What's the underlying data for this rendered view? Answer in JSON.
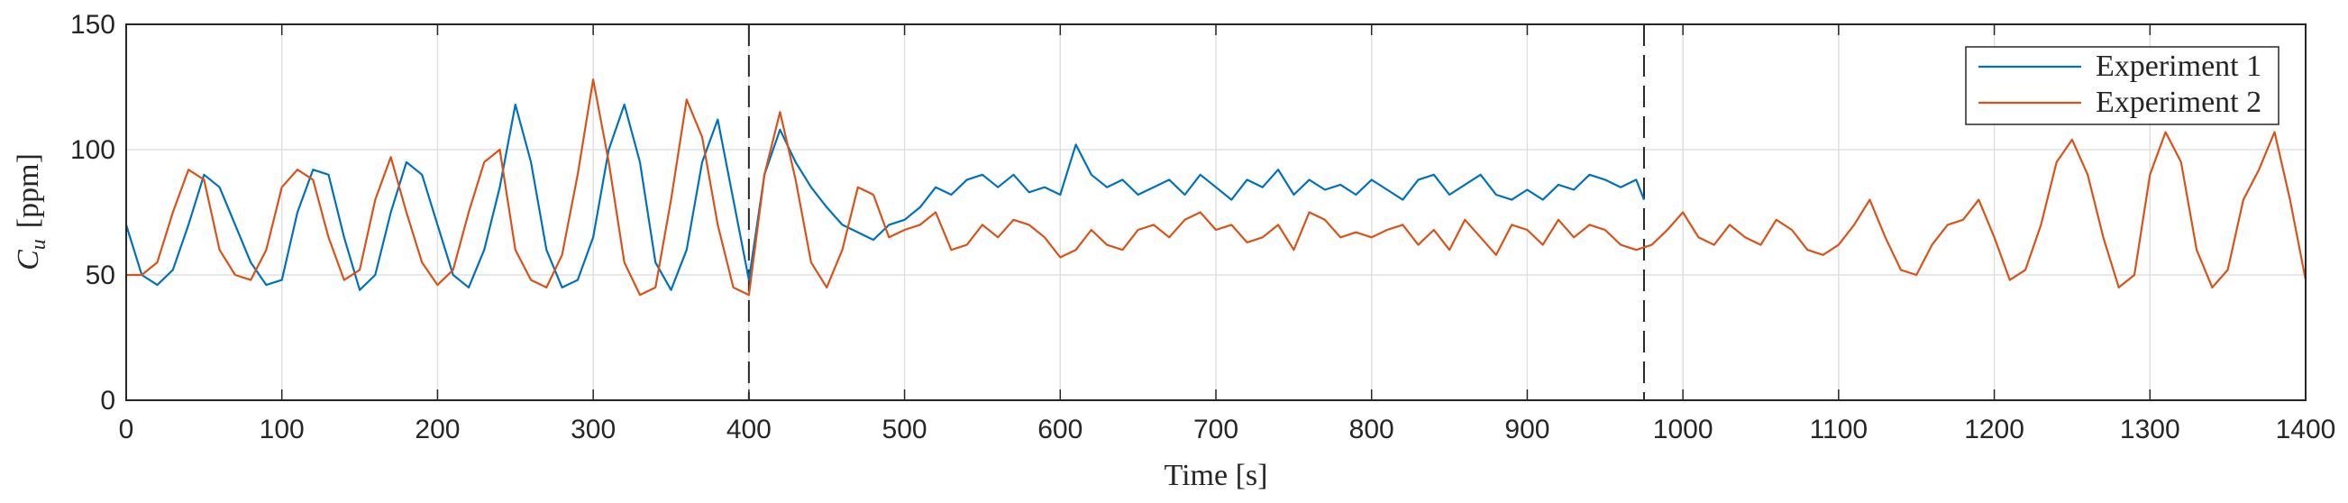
{
  "chart_data": {
    "type": "line",
    "x_label": "Time [s]",
    "y_label": {
      "symbol": "C",
      "subscript": "u",
      "unit": "[ppm]"
    },
    "xlim": [
      0,
      1400
    ],
    "xticks": [
      0,
      100,
      200,
      300,
      400,
      500,
      600,
      700,
      800,
      900,
      1000,
      1100,
      1200,
      1300,
      1400
    ],
    "ylim": [
      0,
      150
    ],
    "yticks": [
      0,
      50,
      100,
      150
    ],
    "grid": true,
    "legend": "upper right",
    "vlines": [
      400,
      975
    ],
    "series": [
      {
        "name": "Experiment 1",
        "color": "#0072bd",
        "x": [
          0,
          10,
          20,
          30,
          40,
          50,
          60,
          70,
          80,
          90,
          100,
          110,
          120,
          130,
          140,
          150,
          160,
          170,
          180,
          190,
          200,
          210,
          220,
          230,
          240,
          250,
          260,
          270,
          280,
          290,
          300,
          310,
          320,
          330,
          340,
          350,
          360,
          370,
          380,
          390,
          400,
          410,
          420,
          430,
          440,
          450,
          460,
          470,
          480,
          490,
          500,
          510,
          520,
          530,
          540,
          550,
          560,
          570,
          580,
          590,
          600,
          610,
          620,
          630,
          640,
          650,
          660,
          670,
          680,
          690,
          700,
          710,
          720,
          730,
          740,
          750,
          760,
          770,
          780,
          790,
          800,
          810,
          820,
          830,
          840,
          850,
          860,
          870,
          880,
          890,
          900,
          910,
          920,
          930,
          940,
          950,
          960,
          970,
          975
        ],
        "values": [
          70,
          50,
          46,
          52,
          70,
          90,
          85,
          70,
          55,
          46,
          48,
          75,
          92,
          90,
          65,
          44,
          50,
          75,
          95,
          90,
          70,
          50,
          45,
          60,
          85,
          118,
          95,
          60,
          45,
          48,
          65,
          100,
          118,
          95,
          55,
          44,
          60,
          95,
          112,
          80,
          48,
          90,
          108,
          95,
          85,
          77,
          70,
          67,
          64,
          70,
          72,
          77,
          85,
          82,
          88,
          90,
          85,
          90,
          83,
          85,
          82,
          102,
          90,
          85,
          88,
          82,
          85,
          88,
          82,
          90,
          85,
          80,
          88,
          85,
          92,
          82,
          88,
          84,
          86,
          82,
          88,
          84,
          80,
          88,
          90,
          82,
          86,
          90,
          82,
          80,
          84,
          80,
          86,
          84,
          90,
          88,
          85,
          88,
          80
        ]
      },
      {
        "name": "Experiment 2",
        "color": "#d95319",
        "x": [
          0,
          10,
          20,
          30,
          40,
          50,
          60,
          70,
          80,
          90,
          100,
          110,
          120,
          130,
          140,
          150,
          160,
          170,
          180,
          190,
          200,
          210,
          220,
          230,
          240,
          250,
          260,
          270,
          280,
          290,
          300,
          310,
          320,
          330,
          340,
          350,
          360,
          370,
          380,
          390,
          400,
          410,
          420,
          430,
          440,
          450,
          460,
          470,
          480,
          490,
          500,
          510,
          520,
          530,
          540,
          550,
          560,
          570,
          580,
          590,
          600,
          610,
          620,
          630,
          640,
          650,
          660,
          670,
          680,
          690,
          700,
          710,
          720,
          730,
          740,
          750,
          760,
          770,
          780,
          790,
          800,
          810,
          820,
          830,
          840,
          850,
          860,
          870,
          880,
          890,
          900,
          910,
          920,
          930,
          940,
          950,
          960,
          970,
          980,
          990,
          1000,
          1010,
          1020,
          1030,
          1040,
          1050,
          1060,
          1070,
          1080,
          1090,
          1100,
          1110,
          1120,
          1130,
          1140,
          1150,
          1160,
          1170,
          1180,
          1190,
          1200,
          1210,
          1220,
          1230,
          1240,
          1250,
          1260,
          1270,
          1280,
          1290,
          1300,
          1310,
          1320,
          1330,
          1340,
          1350,
          1360,
          1370,
          1380,
          1390,
          1400
        ],
        "values": [
          50,
          50,
          55,
          75,
          92,
          88,
          60,
          50,
          48,
          60,
          85,
          92,
          88,
          65,
          48,
          52,
          80,
          97,
          75,
          55,
          46,
          52,
          75,
          95,
          100,
          60,
          48,
          45,
          58,
          90,
          128,
          95,
          55,
          42,
          45,
          80,
          120,
          105,
          70,
          45,
          42,
          90,
          115,
          88,
          55,
          45,
          60,
          85,
          82,
          65,
          68,
          70,
          75,
          60,
          62,
          70,
          65,
          72,
          70,
          65,
          57,
          60,
          68,
          62,
          60,
          68,
          70,
          65,
          72,
          75,
          68,
          70,
          63,
          65,
          70,
          60,
          75,
          72,
          65,
          67,
          65,
          68,
          70,
          62,
          68,
          60,
          72,
          65,
          58,
          70,
          68,
          62,
          72,
          65,
          70,
          68,
          62,
          60,
          62,
          68,
          75,
          65,
          62,
          70,
          65,
          62,
          72,
          68,
          60,
          58,
          62,
          70,
          80,
          65,
          52,
          50,
          62,
          70,
          72,
          80,
          65,
          48,
          52,
          70,
          95,
          104,
          90,
          65,
          45,
          50,
          90,
          107,
          95,
          60,
          45,
          52,
          80,
          92,
          107,
          80,
          48
        ]
      }
    ]
  }
}
